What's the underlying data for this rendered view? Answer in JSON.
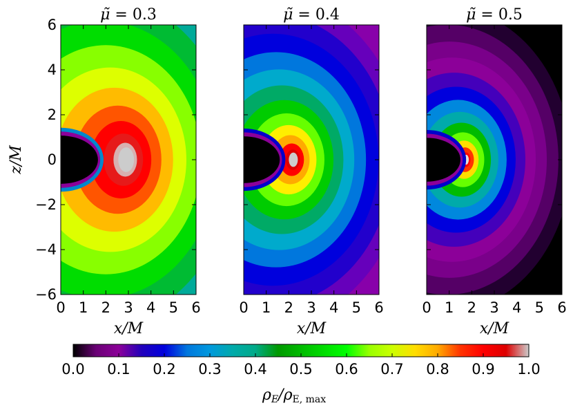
{
  "chart_data": [
    {
      "type": "heatmap",
      "title": "μ̃ = 0.3",
      "mu": 0.3,
      "xlabel": "x/M",
      "ylabel": "z/M",
      "xlim": [
        0,
        6
      ],
      "ylim": [
        -6,
        6
      ],
      "xticks": [
        "0",
        "1",
        "2",
        "3",
        "4",
        "5",
        "6"
      ],
      "yticks": [
        "6",
        "4",
        "2",
        "0",
        "−2",
        "−4",
        "−6"
      ],
      "peak_location": {
        "x": 2.9,
        "z": 0
      },
      "black_hole_radius": 1.65
    },
    {
      "type": "heatmap",
      "title": "μ̃ = 0.4",
      "mu": 0.4,
      "xlabel": "x/M",
      "xlim": [
        0,
        6
      ],
      "ylim": [
        -6,
        6
      ],
      "xticks": [
        "0",
        "1",
        "2",
        "3",
        "4",
        "5",
        "6"
      ],
      "peak_location": {
        "x": 2.2,
        "z": 0
      },
      "black_hole_radius": 1.6
    },
    {
      "type": "heatmap",
      "title": "μ̃ = 0.5",
      "mu": 0.5,
      "xlabel": "x/M",
      "xlim": [
        0,
        6
      ],
      "ylim": [
        -6,
        6
      ],
      "xticks": [
        "0",
        "1",
        "2",
        "3",
        "4",
        "5",
        "6"
      ],
      "peak_location": {
        "x": 1.75,
        "z": 0
      },
      "black_hole_radius": 1.5
    }
  ],
  "colorbar": {
    "label": "ρE/ρE, max",
    "label_main": "ρ",
    "label_sub1": "E",
    "label_div": "/ρ",
    "label_sub2": "E, max",
    "range": [
      0,
      1
    ],
    "ticks": [
      "0.0",
      "0.1",
      "0.2",
      "0.3",
      "0.4",
      "0.5",
      "0.6",
      "0.7",
      "0.8",
      "0.9",
      "1.0"
    ],
    "colormap": "nipy_spectral",
    "colors": [
      "#000000",
      "#8c0099",
      "#0000dd",
      "#0099dd",
      "#00aa88",
      "#00bb00",
      "#00ff00",
      "#ccff00",
      "#ffaa00",
      "#ff0000",
      "#cccccc"
    ]
  }
}
